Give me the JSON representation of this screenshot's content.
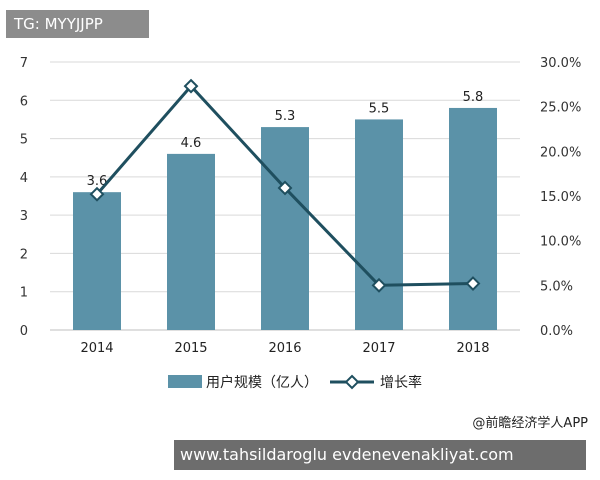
{
  "watermark_tag": "TG: MYYJJPP",
  "credit": "@前瞻经济学人APP",
  "url_text": "www.tahsildaroglu evdenevenakliyat.com",
  "chart_data": {
    "type": "bar",
    "categories": [
      "2014",
      "2015",
      "2016",
      "2017",
      "2018"
    ],
    "series": [
      {
        "name": "用户规模（亿人）",
        "type": "bar",
        "axis": "left",
        "color": "#5b92a8",
        "values": [
          3.6,
          4.6,
          5.3,
          5.5,
          5.8
        ],
        "labels": [
          "3.6",
          "4.6",
          "5.3",
          "5.5",
          "5.8"
        ]
      },
      {
        "name": "增长率",
        "type": "line",
        "axis": "right",
        "color": "#1f4f5f",
        "values": [
          15.2,
          27.3,
          15.9,
          5.0,
          5.2
        ]
      }
    ],
    "left_axis": {
      "ylim": [
        0,
        7
      ],
      "ticks": [
        "0",
        "1",
        "2",
        "3",
        "4",
        "5",
        "6",
        "7"
      ]
    },
    "right_axis": {
      "ylim": [
        0,
        30
      ],
      "ticks": [
        "0.0%",
        "5.0%",
        "10.0%",
        "15.0%",
        "20.0%",
        "25.0%",
        "30.0%"
      ]
    },
    "grid": true,
    "legend": "bottom"
  }
}
